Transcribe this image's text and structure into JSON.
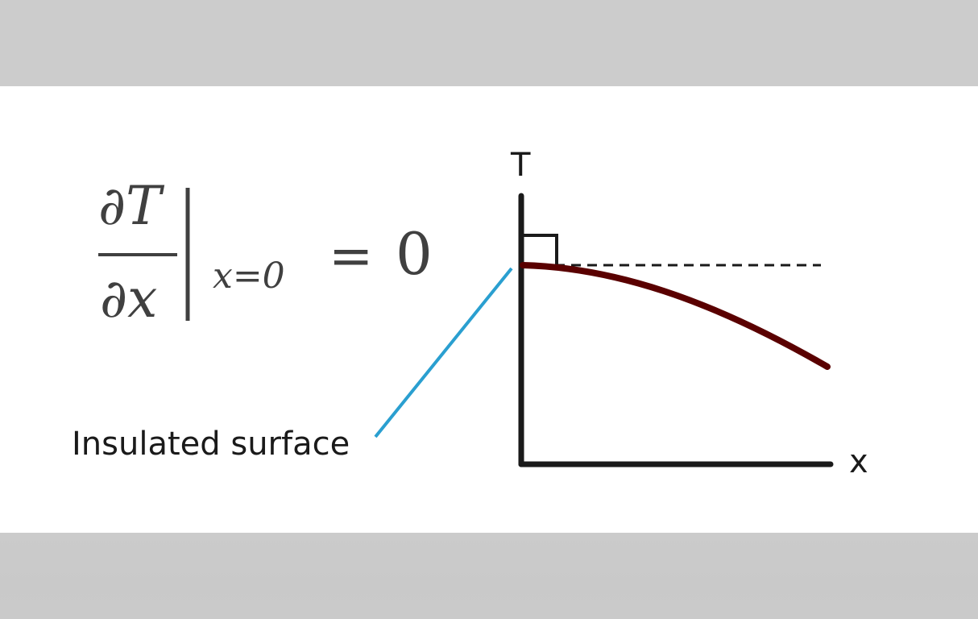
{
  "equation": {
    "numerator": "∂T",
    "denominator": "∂x",
    "subscript": "x=0",
    "equals": "=",
    "rhs": "0"
  },
  "graph": {
    "y_axis_label": "T",
    "x_axis_label": "x",
    "curve_color": "#5a0000",
    "axis_color": "#1a1a1a",
    "tangent_style": "dashed",
    "right_angle_marker": true
  },
  "callout": {
    "text": "Insulated surface",
    "line_color": "#2a9fd0"
  }
}
